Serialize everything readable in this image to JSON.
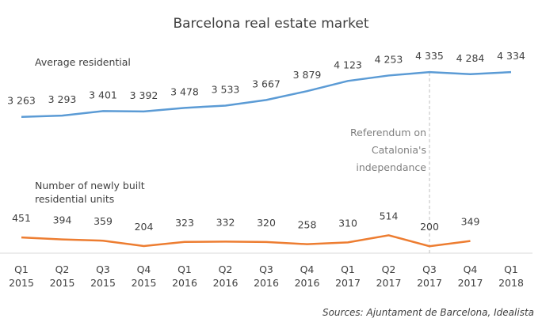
{
  "chart_data": {
    "type": "line",
    "title": "Barcelona real estate market",
    "source": "Sources: Ajuntament de Barcelona, Idealista",
    "categories": [
      "Q1 2015",
      "Q2 2015",
      "Q3 2015",
      "Q4 2015",
      "Q1 2016",
      "Q2 2016",
      "Q3 2016",
      "Q4 2016",
      "Q1 2017",
      "Q2 2017",
      "Q3 2017",
      "Q4 2017",
      "Q1 2018"
    ],
    "ylim": [
      0,
      5000
    ],
    "y2lim": [
      0,
      6000
    ],
    "series": [
      {
        "name": "Average residential",
        "color": "#5b9bd5",
        "values": [
          3263,
          3293,
          3401,
          3392,
          3478,
          3533,
          3667,
          3879,
          4123,
          4253,
          4335,
          4284,
          4334
        ],
        "value_labels": [
          "3 263",
          "3 293",
          "3 401",
          "3 392",
          "3 478",
          "3 533",
          "3 667",
          "3 879",
          "4 123",
          "4 253",
          "4 335",
          "4 284",
          "4 334"
        ]
      },
      {
        "name": "Number of newly built residential units",
        "color": "#ed7d31",
        "axis": "y2",
        "values": [
          451,
          394,
          359,
          204,
          323,
          332,
          320,
          258,
          310,
          514,
          200,
          349,
          null
        ]
      }
    ],
    "annotations": [
      {
        "text": "Referendum on Catalonia's independance",
        "x": "Q3 2017"
      }
    ]
  }
}
